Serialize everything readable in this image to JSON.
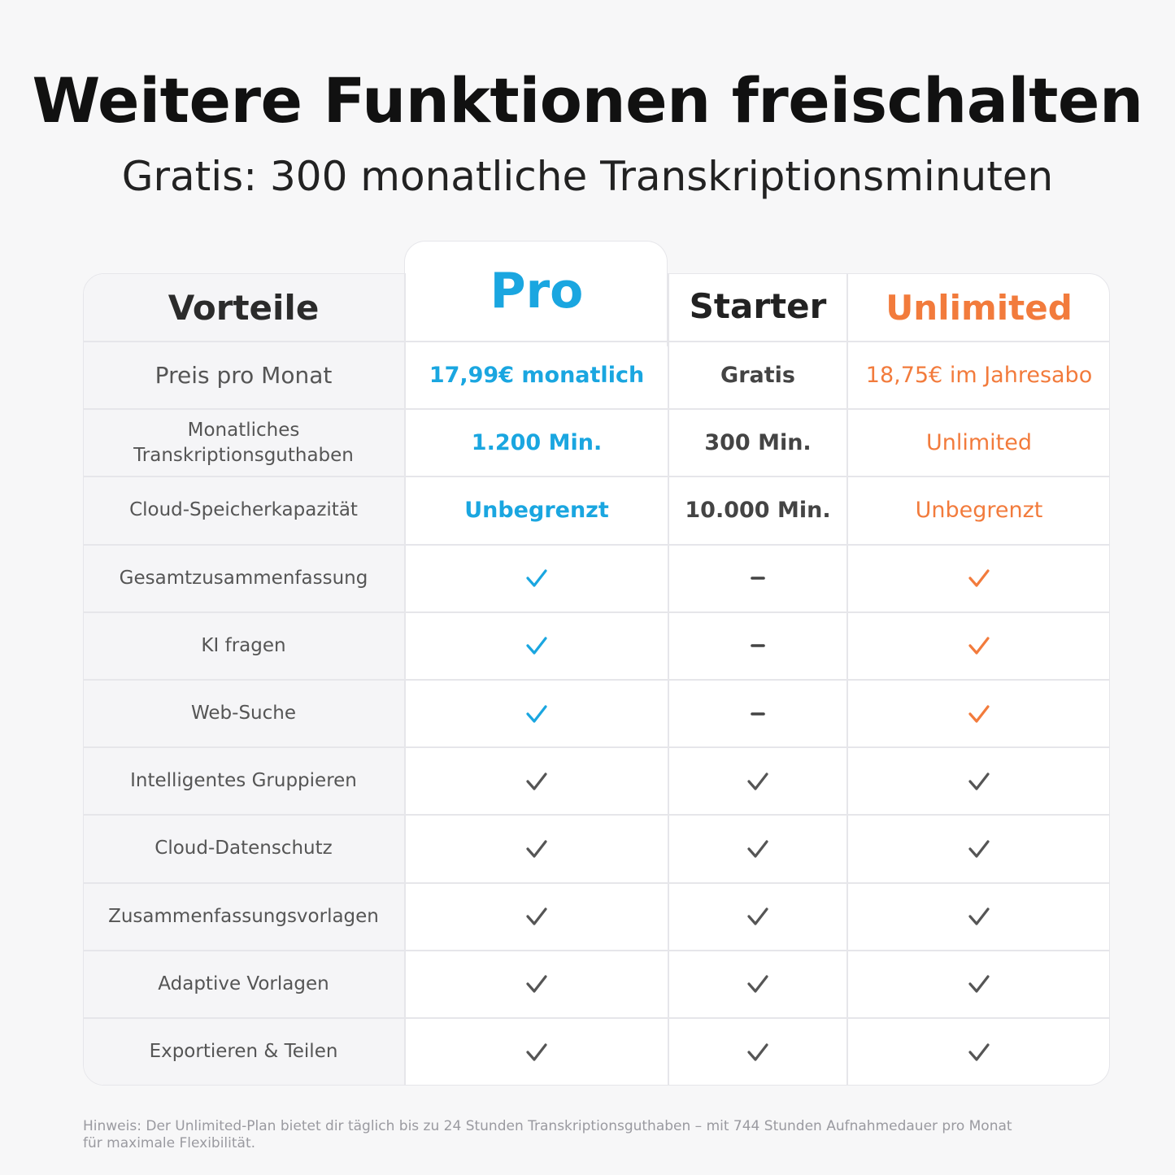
{
  "title": "Weitere Funktionen freischalten",
  "subtitle": "Gratis: 300 monatliche Transkriptionsminuten",
  "colors": {
    "pro": "#1aa6e0",
    "unlimited": "#f27b3c",
    "neutral_check": "#555555",
    "dash": "#444444"
  },
  "headers": {
    "benefits": "Vorteile",
    "pro": "Pro",
    "starter": "Starter",
    "unlimited": "Unlimited"
  },
  "rows": [
    {
      "label": "Preis pro Monat",
      "pro": "17,99€ monatlich",
      "starter": "Gratis",
      "unlimited": "18,75€ im Jahresabo"
    },
    {
      "label": "Monatliches Transkriptionsguthaben",
      "pro": "1.200 Min.",
      "starter": "300 Min.",
      "unlimited": "Unlimited"
    },
    {
      "label": "Cloud-Speicherkapazität",
      "pro": "Unbegrenzt",
      "starter": "10.000 Min.",
      "unlimited": "Unbegrenzt"
    },
    {
      "label": "Gesamtzusammenfassung",
      "pro": "check",
      "starter": "dash",
      "unlimited": "check"
    },
    {
      "label": "KI fragen",
      "pro": "check",
      "starter": "dash",
      "unlimited": "check"
    },
    {
      "label": "Web-Suche",
      "pro": "check",
      "starter": "dash",
      "unlimited": "check"
    },
    {
      "label": "Intelligentes Gruppieren",
      "pro": "check",
      "starter": "check",
      "unlimited": "check"
    },
    {
      "label": "Cloud-Datenschutz",
      "pro": "check",
      "starter": "check",
      "unlimited": "check"
    },
    {
      "label": "Zusammenfassungsvorlagen",
      "pro": "check",
      "starter": "check",
      "unlimited": "check"
    },
    {
      "label": "Adaptive Vorlagen",
      "pro": "check",
      "starter": "check",
      "unlimited": "check"
    },
    {
      "label": "Exportieren & Teilen",
      "pro": "check",
      "starter": "check",
      "unlimited": "check"
    }
  ],
  "footnote": "Hinweis: Der Unlimited-Plan bietet dir täglich bis zu 24 Stunden Transkriptionsguthaben – mit 744 Stunden Aufnahmedauer pro Monat für maximale Flexibilität."
}
